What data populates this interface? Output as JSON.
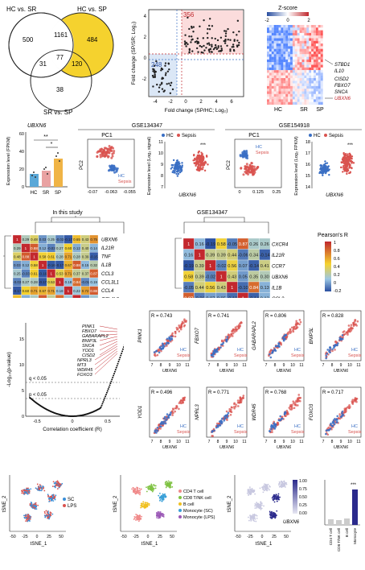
{
  "venn": {
    "sets": [
      "HC vs. SR",
      "HC vs. SP",
      "SR vs. SP"
    ],
    "regions": {
      "hcsr_only": "500",
      "hcsr_hcsp": "1161",
      "hcsp_only": "484",
      "hcsr_srsp": "31",
      "all": "77",
      "hcsp_srsp": "120",
      "srsp_only": "38"
    },
    "highlight_color": "#f5d22e"
  },
  "fc_scatter": {
    "xlabel": "Fold change (SP/HC; Log₂)",
    "ylabel": "Fold change (SP/SR; Log₂)",
    "up_count": "356",
    "down_count": "248",
    "xticks": [
      "-4",
      "-2",
      "0",
      "2",
      "4",
      "6"
    ],
    "yticks": [
      "-2",
      "0",
      "2",
      "4"
    ]
  },
  "heatmap_top": {
    "title": "Z-score",
    "scale": [
      "-2",
      "0",
      "2"
    ],
    "genes": [
      "STBD1",
      "IL10",
      "CISD2",
      "FBXO7",
      "SNCA",
      "UBXN6"
    ],
    "highlight_gene": "UBXN6",
    "groups": [
      "HC",
      "SR",
      "SP"
    ]
  },
  "bar_ubxn6": {
    "title": "UBXN6",
    "ylabel": "Expression level (FPKM)",
    "categories": [
      "HC",
      "SR",
      "SP"
    ],
    "yticks": [
      "0",
      "20",
      "40",
      "60"
    ],
    "sig": [
      "**",
      "*"
    ]
  },
  "gse134347": {
    "title": "GSE134347",
    "pca_title": "PC1",
    "pc2": "PC2",
    "pc1_ticks": [
      "-0.07",
      "-0.063",
      "-0.055"
    ],
    "legend": [
      "HC",
      "Sepsis"
    ],
    "ylabel": "Expression level (Log₂ signal)",
    "yticks": [
      "7",
      "8",
      "9",
      "10",
      "11"
    ],
    "gene": "UBXN6",
    "sig": "***"
  },
  "gse154918": {
    "title": "GSE154918",
    "pca_title": "PC1",
    "pc2": "PC2",
    "pc1_ticks": [
      "0",
      "0.125",
      "0.25"
    ],
    "legend": [
      "HC",
      "Sepsis"
    ],
    "ylabel": "Expression level (Log₂ FPKM)",
    "yticks": [
      "14",
      "15",
      "16",
      "17",
      "18"
    ],
    "gene": "UBXN6",
    "sig": "***"
  },
  "corr_left": {
    "title": "In this study",
    "genes": [
      "UBXN6",
      "IL21R",
      "TNF",
      "IL1B",
      "CCL3",
      "CCL3L1",
      "CCL4",
      "CCL4L2",
      "CXCR4",
      "CCR7"
    ]
  },
  "corr_right": {
    "title": "GSE134347",
    "genes": [
      "CXCR4",
      "IL21R",
      "CCR7",
      "UBXN6",
      "IL1B",
      "CCL3",
      "CCL4",
      "TNF"
    ]
  },
  "pearson_legend": {
    "title": "Pearson's R",
    "ticks": [
      "1",
      "0.8",
      "0.6",
      "0.4",
      "0.2",
      "0",
      "-0.2"
    ]
  },
  "volcano": {
    "xlabel": "Correlation coefficient (R)",
    "ylabel": "-Log₁₀(p-value)",
    "q_label": "q < 0.05",
    "p_label": "p < 0.05",
    "genes": [
      "PINK1",
      "FBXO7",
      "GABARAPL2",
      "BNIP3L",
      "SNCA",
      "YOD1",
      "CISD2",
      "NPRL3",
      "MT3",
      "WDR45",
      "FOXO3"
    ],
    "xticks": [
      "-0.5",
      "0",
      "0.5"
    ],
    "yticks": [
      "0",
      "5",
      "10",
      "15"
    ]
  },
  "small_scatters": [
    {
      "gene": "PINK1",
      "r": "R = 0.743"
    },
    {
      "gene": "FBXO7",
      "r": "R = 0.741"
    },
    {
      "gene": "GABARAPL2",
      "r": "R = 0.806"
    },
    {
      "gene": "BNIP3L",
      "r": "R = 0.828"
    },
    {
      "gene": "YOD1",
      "r": "R = 0.496"
    },
    {
      "gene": "NPRL3",
      "r": "R = 0.771"
    },
    {
      "gene": "WDR45",
      "r": "R = 0.768"
    },
    {
      "gene": "FOXO3",
      "r": "R = 0.717"
    }
  ],
  "scatter_common": {
    "xlabel": "UBXN6",
    "xticks": [
      "7",
      "8",
      "9",
      "10",
      "11"
    ],
    "legend": [
      "HC",
      "Sepsis"
    ]
  },
  "tsne": {
    "xlabel": "tSNE_1",
    "ylabel": "tSNE_2",
    "xticks": [
      "-50",
      "-25",
      "0",
      "25",
      "50"
    ],
    "cond_legend": [
      "SC",
      "LPS"
    ],
    "cell_legend": [
      "CD4 T cell",
      "CD8 T/NK cell",
      "B cell",
      "Monocyte (SC)",
      "Monocyte (LPS)"
    ],
    "gene": "UBXN6",
    "scale": [
      "1.00",
      "0.75",
      "0.50",
      "0.25",
      "0.00"
    ],
    "bar_categories": [
      "CD4 T cell",
      "CD8 T/NK cell",
      "B cell",
      "Monocyte"
    ],
    "bar_sig": "***"
  },
  "colors": {
    "hc": "#3a6fc4",
    "sepsis": "#d9534f",
    "red": "#c0282e",
    "blue": "#2a4fa0",
    "yellow": "#f5d22e"
  }
}
